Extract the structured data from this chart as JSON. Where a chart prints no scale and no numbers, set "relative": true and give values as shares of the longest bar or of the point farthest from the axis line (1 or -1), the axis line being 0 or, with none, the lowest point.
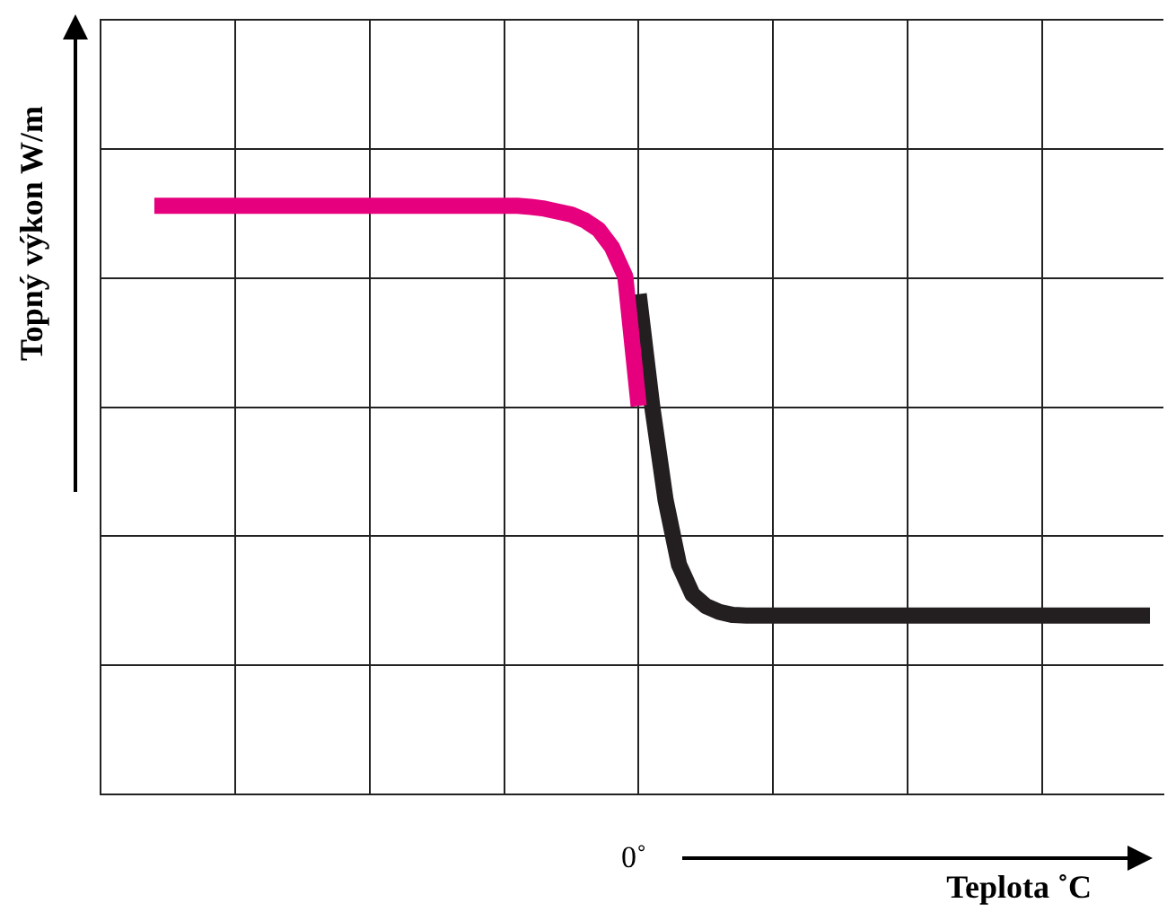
{
  "chart_data": {
    "type": "line",
    "relative": true,
    "xlabel": "Teplota ˚C",
    "ylabel": "Topný výkon W/m",
    "annotations": [
      "0˚"
    ],
    "categories": [
      null,
      null,
      null,
      null,
      null,
      null,
      null,
      null,
      null,
      null,
      null,
      null,
      null,
      null,
      null,
      null,
      null,
      null,
      null,
      null,
      null,
      null,
      null,
      null,
      null,
      null,
      null,
      null,
      null,
      null,
      null,
      null,
      null,
      null,
      null,
      null,
      null,
      null,
      null,
      null,
      null,
      null,
      null,
      null,
      null,
      null,
      null,
      null,
      null,
      null,
      null,
      null,
      null,
      null,
      null,
      null,
      null,
      null,
      null,
      null,
      null,
      null,
      null,
      null,
      null,
      null,
      null,
      null,
      null,
      null,
      null,
      null,
      null,
      null,
      null
    ],
    "grid": true,
    "legend": false,
    "marker": "none",
    "line_style": "solid",
    "series": [
      {
        "type": "line",
        "color": "#e6007e",
        "values": [
          1,
          1,
          1,
          1,
          1,
          1,
          1,
          1,
          1,
          1,
          1,
          1,
          1,
          1,
          1,
          1,
          1,
          1,
          1,
          1,
          1,
          1,
          1,
          1,
          1,
          1,
          1,
          1,
          0.998,
          0.995,
          0.99,
          0.985,
          0.975,
          0.96,
          0.93,
          0.88,
          0.66,
          null,
          null,
          null,
          null,
          null,
          null,
          null,
          null,
          null,
          null,
          null,
          null,
          null,
          null,
          null,
          null,
          null,
          null,
          null,
          null,
          null,
          null,
          null,
          null,
          null,
          null,
          null,
          null,
          null,
          null,
          null,
          null,
          null,
          null,
          null,
          null,
          null,
          null
        ]
      },
      {
        "type": "line",
        "color": "#231f20",
        "values": [
          null,
          null,
          null,
          null,
          null,
          null,
          null,
          null,
          null,
          null,
          null,
          null,
          null,
          null,
          null,
          null,
          null,
          null,
          null,
          null,
          null,
          null,
          null,
          null,
          null,
          null,
          null,
          null,
          null,
          null,
          null,
          null,
          null,
          null,
          null,
          null,
          0.85,
          0.66,
          0.5,
          0.39,
          0.34,
          0.32,
          0.31,
          0.305,
          0.304,
          0.304,
          0.304,
          0.304,
          0.304,
          0.304,
          0.304,
          0.304,
          0.304,
          0.304,
          0.304,
          0.304,
          0.304,
          0.304,
          0.304,
          0.304,
          0.304,
          0.304,
          0.304,
          0.304,
          0.304,
          0.304,
          0.304,
          0.304,
          0.304,
          0.304,
          0.304,
          0.304,
          0.304,
          0.304,
          0.304
        ]
      }
    ]
  }
}
